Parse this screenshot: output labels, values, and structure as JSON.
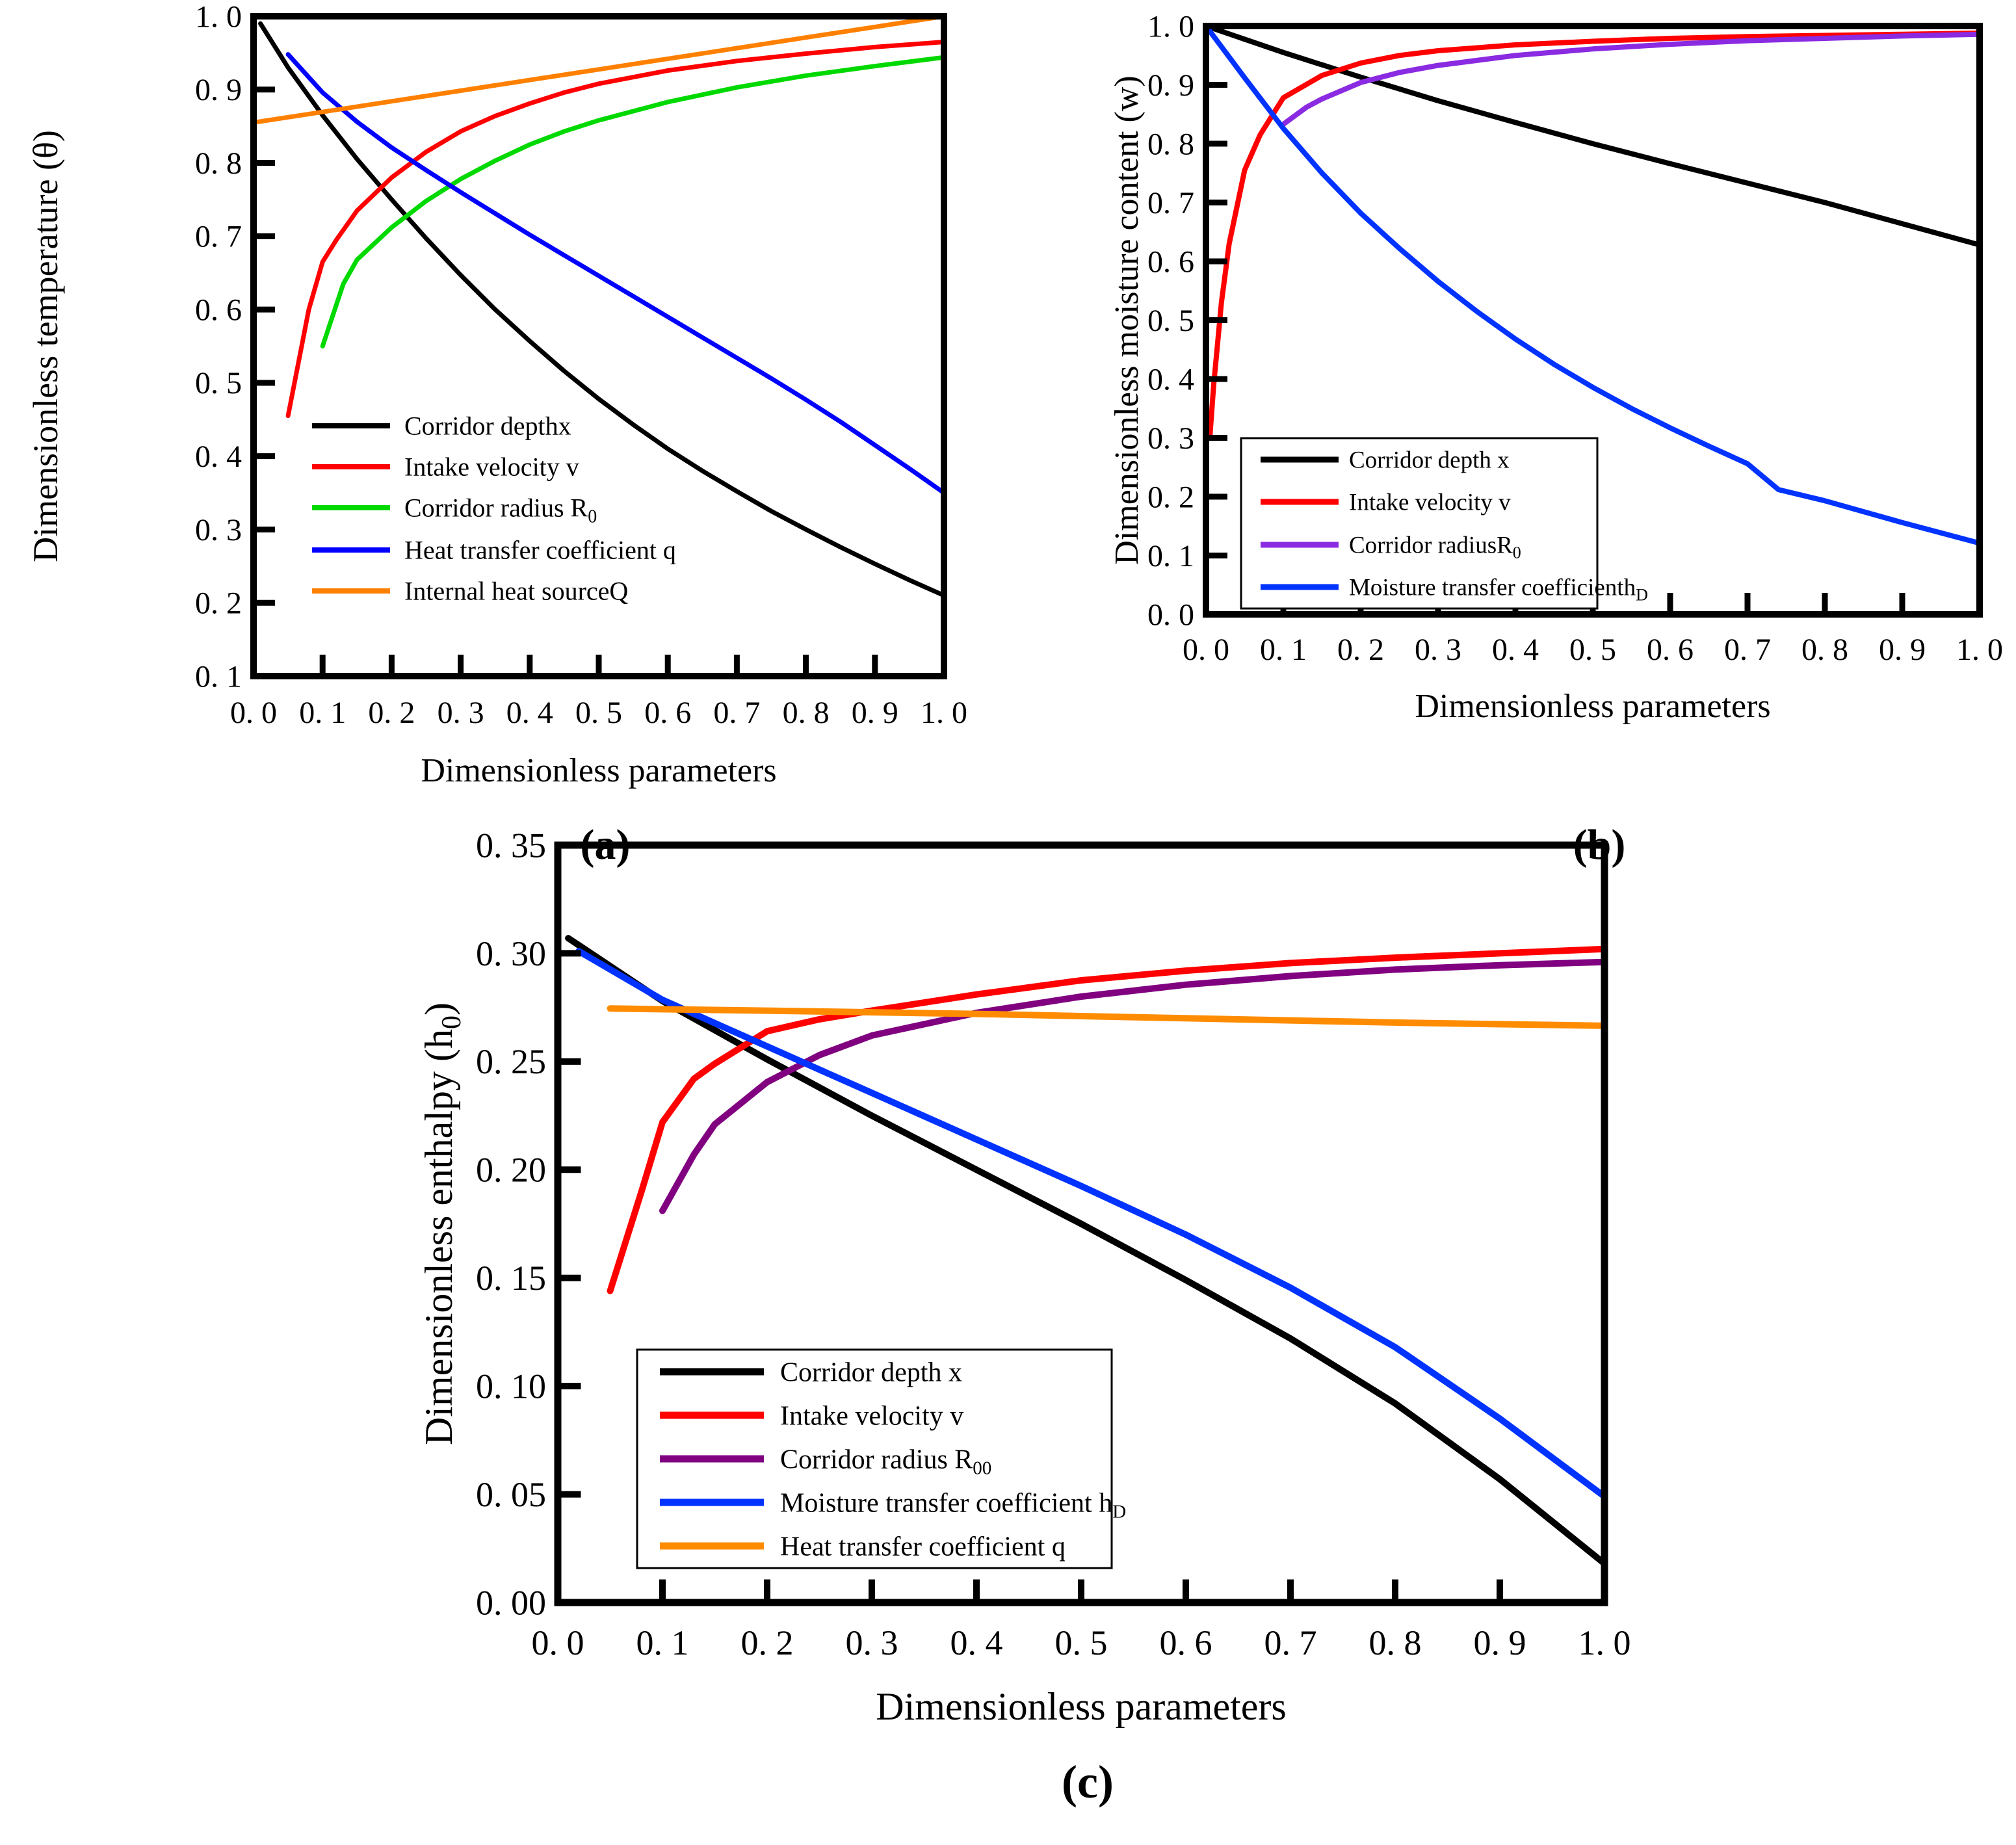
{
  "figure": {
    "background": "#ffffff",
    "font_color": "#000000"
  },
  "chart_data": [
    {
      "id": "a",
      "type": "line",
      "caption": "(a)",
      "xlabel": "Dimensionless parameters",
      "ylabel": "Dimensionless temperature (θ)",
      "xlim": [
        0.0,
        1.0
      ],
      "ylim": [
        0.1,
        1.0
      ],
      "grid": false,
      "legend_position": "lower-left-inside",
      "legend_boxed": false,
      "x_ticks": {
        "values": [
          0.0,
          0.1,
          0.2,
          0.3,
          0.4,
          0.5,
          0.6,
          0.7,
          0.8,
          0.9,
          1.0
        ],
        "labels": [
          "0. 0",
          "0. 1",
          "0. 2",
          "0. 3",
          "0. 4",
          "0. 5",
          "0. 6",
          "0. 7",
          "0. 8",
          "0. 9",
          "1. 0"
        ]
      },
      "y_ticks": {
        "values": [
          0.1,
          0.2,
          0.3,
          0.4,
          0.5,
          0.6,
          0.7,
          0.8,
          0.9,
          1.0
        ],
        "labels": [
          "0. 1",
          "0. 2",
          "0. 3",
          "0. 4",
          "0. 5",
          "0. 6",
          "0. 7",
          "0. 8",
          "0. 9",
          "1. 0"
        ]
      },
      "series": [
        {
          "name": "Corridor depthx",
          "color": "#000000",
          "x": [
            0.01,
            0.05,
            0.1,
            0.15,
            0.2,
            0.25,
            0.3,
            0.35,
            0.4,
            0.45,
            0.5,
            0.55,
            0.6,
            0.65,
            0.7,
            0.75,
            0.8,
            0.85,
            0.9,
            0.95,
            1.0
          ],
          "y": [
            0.99,
            0.93,
            0.865,
            0.805,
            0.75,
            0.697,
            0.647,
            0.6,
            0.557,
            0.516,
            0.478,
            0.443,
            0.41,
            0.38,
            0.352,
            0.325,
            0.3,
            0.276,
            0.253,
            0.231,
            0.21
          ]
        },
        {
          "name": "Intake velocity v",
          "color": "#FF0000",
          "x": [
            0.05,
            0.08,
            0.1,
            0.12,
            0.15,
            0.2,
            0.25,
            0.3,
            0.35,
            0.4,
            0.45,
            0.5,
            0.6,
            0.7,
            0.8,
            0.9,
            1.0
          ],
          "y": [
            0.455,
            0.6,
            0.665,
            0.695,
            0.735,
            0.78,
            0.815,
            0.843,
            0.864,
            0.881,
            0.896,
            0.908,
            0.926,
            0.939,
            0.949,
            0.958,
            0.965
          ]
        },
        {
          "name": "Corridor radius R_{0}",
          "color": "#00D900",
          "x": [
            0.1,
            0.13,
            0.15,
            0.2,
            0.25,
            0.3,
            0.35,
            0.4,
            0.45,
            0.5,
            0.6,
            0.7,
            0.8,
            0.9,
            1.0
          ],
          "y": [
            0.55,
            0.635,
            0.668,
            0.712,
            0.748,
            0.778,
            0.803,
            0.825,
            0.843,
            0.858,
            0.883,
            0.903,
            0.919,
            0.932,
            0.944
          ]
        },
        {
          "name": "Heat transfer coefficient q",
          "color": "#0000FF",
          "x": [
            0.05,
            0.1,
            0.15,
            0.2,
            0.25,
            0.3,
            0.35,
            0.4,
            0.45,
            0.5,
            0.55,
            0.6,
            0.65,
            0.7,
            0.75,
            0.8,
            0.85,
            0.9,
            0.95,
            1.0
          ],
          "y": [
            0.948,
            0.896,
            0.856,
            0.821,
            0.79,
            0.76,
            0.731,
            0.702,
            0.674,
            0.646,
            0.618,
            0.59,
            0.562,
            0.534,
            0.506,
            0.477,
            0.447,
            0.415,
            0.383,
            0.35
          ]
        },
        {
          "name": "Internal heat sourceQ",
          "color": "#FF8000",
          "x": [
            0.0,
            0.1,
            0.2,
            0.3,
            0.4,
            0.5,
            0.6,
            0.7,
            0.8,
            0.9,
            1.0
          ],
          "y": [
            0.855,
            0.8695,
            0.884,
            0.8985,
            0.913,
            0.9275,
            0.942,
            0.9565,
            0.971,
            0.9855,
            1.0
          ]
        }
      ]
    },
    {
      "id": "b",
      "type": "line",
      "caption": "(b)",
      "xlabel": "Dimensionless parameters",
      "ylabel": "Dimensionless moisture content (w)",
      "xlim": [
        0.0,
        1.0
      ],
      "ylim": [
        0.0,
        1.0
      ],
      "grid": false,
      "legend_position": "lower-middle-inside",
      "legend_boxed": true,
      "x_ticks": {
        "values": [
          0.0,
          0.1,
          0.2,
          0.3,
          0.4,
          0.5,
          0.6,
          0.7,
          0.8,
          0.9,
          1.0
        ],
        "labels": [
          "0. 0",
          "0. 1",
          "0. 2",
          "0. 3",
          "0. 4",
          "0. 5",
          "0. 6",
          "0. 7",
          "0. 8",
          "0. 9",
          "1. 0"
        ]
      },
      "y_ticks": {
        "values": [
          0.0,
          0.1,
          0.2,
          0.3,
          0.4,
          0.5,
          0.6,
          0.7,
          0.8,
          0.9,
          1.0
        ],
        "labels": [
          "0. 0",
          "0. 1",
          "0. 2",
          "0. 3",
          "0. 4",
          "0. 5",
          "0. 6",
          "0. 7",
          "0. 8",
          "0. 9",
          "1. 0"
        ]
      },
      "series": [
        {
          "name": "Corridor depth x",
          "color": "#000000",
          "x": [
            0.0,
            0.1,
            0.2,
            0.3,
            0.4,
            0.5,
            0.6,
            0.7,
            0.8,
            0.9,
            1.0
          ],
          "y": [
            1.0,
            0.955,
            0.913,
            0.873,
            0.836,
            0.8,
            0.766,
            0.733,
            0.7,
            0.664,
            0.628
          ]
        },
        {
          "name": "Intake velocity v",
          "color": "#FF0000",
          "x": [
            0.005,
            0.01,
            0.02,
            0.03,
            0.05,
            0.07,
            0.1,
            0.15,
            0.2,
            0.25,
            0.3,
            0.4,
            0.5,
            0.6,
            0.7,
            0.8,
            0.9,
            1.0
          ],
          "y": [
            0.3,
            0.39,
            0.53,
            0.63,
            0.755,
            0.815,
            0.878,
            0.916,
            0.937,
            0.95,
            0.958,
            0.968,
            0.974,
            0.979,
            0.982,
            0.984,
            0.986,
            0.988
          ]
        },
        {
          "name": "Corridor radiusR_{0}",
          "color": "#8A2BE2",
          "x": [
            0.1,
            0.13,
            0.15,
            0.2,
            0.25,
            0.3,
            0.4,
            0.5,
            0.6,
            0.7,
            0.8,
            0.9,
            1.0
          ],
          "y": [
            0.833,
            0.862,
            0.876,
            0.904,
            0.921,
            0.933,
            0.95,
            0.961,
            0.969,
            0.975,
            0.979,
            0.983,
            0.986
          ]
        },
        {
          "name": "Moisture transfer coefficienth_{D}",
          "color": "#0033FF",
          "x": [
            0.0,
            0.05,
            0.1,
            0.15,
            0.2,
            0.25,
            0.3,
            0.35,
            0.4,
            0.45,
            0.5,
            0.55,
            0.6,
            0.65,
            0.7,
            0.74,
            0.8,
            0.9,
            1.0
          ],
          "y": [
            1.0,
            0.912,
            0.826,
            0.75,
            0.682,
            0.622,
            0.566,
            0.515,
            0.468,
            0.425,
            0.386,
            0.35,
            0.317,
            0.286,
            0.256,
            0.212,
            0.193,
            0.156,
            0.121
          ]
        }
      ]
    },
    {
      "id": "c",
      "type": "line",
      "caption": "(c)",
      "xlabel": "Dimensionless parameters",
      "ylabel": "Dimensionless enthalpy (h_{0})",
      "xlim": [
        0.0,
        1.0
      ],
      "ylim": [
        0.0,
        0.35
      ],
      "grid": false,
      "legend_position": "lower-left-inside",
      "legend_boxed": true,
      "x_ticks": {
        "values": [
          0.0,
          0.1,
          0.2,
          0.3,
          0.4,
          0.5,
          0.6,
          0.7,
          0.8,
          0.9,
          1.0
        ],
        "labels": [
          "0. 0",
          "0. 1",
          "0. 2",
          "0. 3",
          "0. 4",
          "0. 5",
          "0. 6",
          "0. 7",
          "0. 8",
          "0. 9",
          "1. 0"
        ]
      },
      "y_ticks": {
        "values": [
          0.0,
          0.05,
          0.1,
          0.15,
          0.2,
          0.25,
          0.3,
          0.35
        ],
        "labels": [
          "0. 00",
          "0. 05",
          "0. 10",
          "0. 15",
          "0. 20",
          "0. 25",
          "0. 30",
          "0. 35"
        ]
      },
      "series": [
        {
          "name": "Corridor depth x",
          "color": "#000000",
          "x": [
            0.01,
            0.1,
            0.2,
            0.3,
            0.4,
            0.5,
            0.6,
            0.7,
            0.8,
            0.9,
            1.0
          ],
          "y": [
            0.307,
            0.278,
            0.251,
            0.225,
            0.2,
            0.175,
            0.149,
            0.122,
            0.092,
            0.057,
            0.018
          ]
        },
        {
          "name": "Intake velocity v",
          "color": "#FF0000",
          "x": [
            0.05,
            0.08,
            0.1,
            0.13,
            0.15,
            0.2,
            0.25,
            0.3,
            0.4,
            0.5,
            0.6,
            0.7,
            0.8,
            0.9,
            1.0
          ],
          "y": [
            0.144,
            0.19,
            0.222,
            0.242,
            0.249,
            0.264,
            0.2695,
            0.2735,
            0.281,
            0.2875,
            0.292,
            0.2955,
            0.298,
            0.3,
            0.302
          ]
        },
        {
          "name": "Corridor radius R_{00}",
          "color": "#800080",
          "x": [
            0.1,
            0.13,
            0.15,
            0.2,
            0.25,
            0.3,
            0.4,
            0.5,
            0.6,
            0.7,
            0.8,
            0.9,
            1.0
          ],
          "y": [
            0.181,
            0.207,
            0.221,
            0.2405,
            0.253,
            0.262,
            0.2725,
            0.28,
            0.2855,
            0.2895,
            0.2925,
            0.2945,
            0.296
          ]
        },
        {
          "name": "Moisture transfer coefficient h_{D}",
          "color": "#0033FF",
          "x": [
            0.02,
            0.1,
            0.2,
            0.3,
            0.4,
            0.5,
            0.6,
            0.7,
            0.8,
            0.9,
            1.0
          ],
          "y": [
            0.301,
            0.2785,
            0.257,
            0.2355,
            0.214,
            0.1925,
            0.17,
            0.1455,
            0.118,
            0.085,
            0.049
          ]
        },
        {
          "name": "Heat transfer coefficient q",
          "color": "#FF8C00",
          "x": [
            0.05,
            0.2,
            0.4,
            0.6,
            0.8,
            1.0
          ],
          "y": [
            0.2745,
            0.2735,
            0.272,
            0.27,
            0.268,
            0.2665
          ]
        }
      ]
    }
  ]
}
